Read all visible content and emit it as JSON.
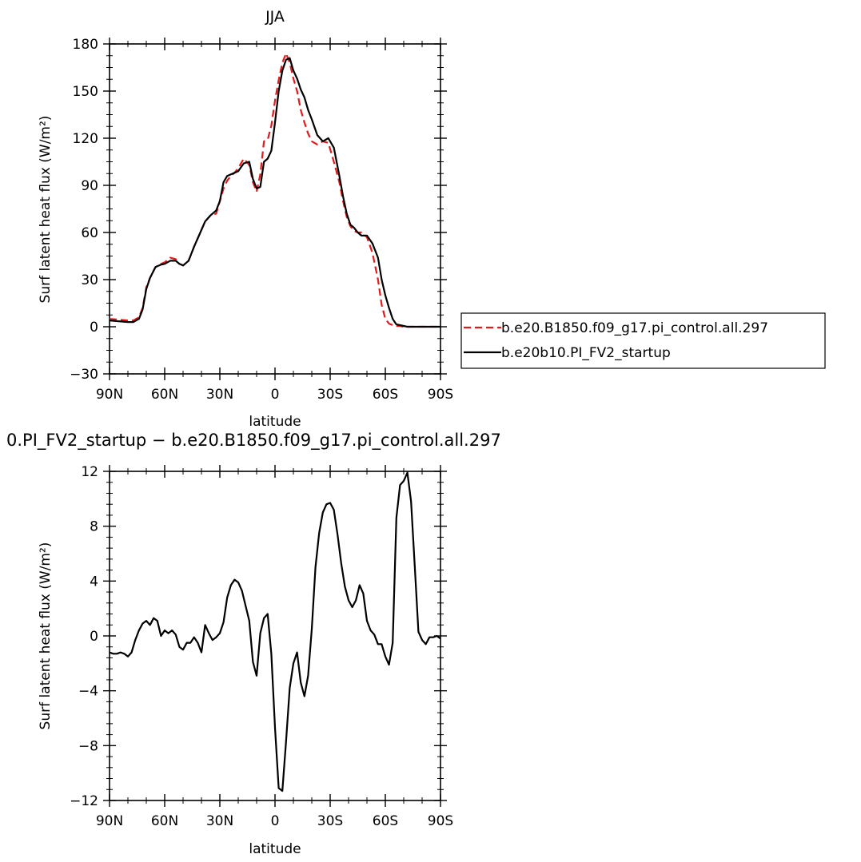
{
  "chart_data": [
    {
      "type": "line",
      "title": "JJA",
      "xlabel": "latitude",
      "ylabel": "Surf latent heat flux (W/m²)",
      "ylim": [
        -30,
        180
      ],
      "yticks": [
        "−30",
        "0",
        "30",
        "60",
        "90",
        "120",
        "150",
        "180"
      ],
      "ytick_values": [
        -30,
        0,
        30,
        60,
        90,
        120,
        150,
        180
      ],
      "xlim": [
        90,
        -90
      ],
      "xticks": [
        "90N",
        "60N",
        "30N",
        "0",
        "30S",
        "60S",
        "90S"
      ],
      "xtick_values": [
        90,
        60,
        30,
        0,
        -30,
        -60,
        -90
      ],
      "legend_position": "right",
      "series": [
        {
          "name": "b.e20.B1850.f09_g17.pi_control.all.297",
          "color": "#e31a1c",
          "style": "dashed",
          "x": [
            90,
            85,
            80,
            77,
            74,
            72,
            70,
            68,
            65,
            62,
            60,
            57,
            54,
            52,
            50,
            47,
            44,
            41,
            38,
            35,
            32,
            30,
            28,
            26,
            24,
            22,
            20,
            17,
            14,
            12,
            10,
            8,
            6,
            4,
            2,
            0,
            -2,
            -4,
            -6,
            -8,
            -10,
            -12,
            -14,
            -16,
            -18,
            -20,
            -23,
            -26,
            -29,
            -32,
            -35,
            -37,
            -39,
            -41,
            -43,
            -45,
            -47,
            -50,
            -53,
            -56,
            -58,
            -60,
            -62,
            -64,
            -66,
            -68,
            -70,
            -72,
            -75,
            -78,
            -80,
            -83,
            -86,
            -90
          ],
          "y": [
            5,
            4.5,
            4,
            4,
            6,
            12,
            25,
            31,
            38,
            40,
            41,
            44,
            43,
            40,
            39,
            42,
            51,
            59,
            67,
            71,
            72,
            80,
            88,
            93,
            96,
            98,
            101,
            107,
            103,
            92,
            86,
            97,
            118,
            119,
            128,
            144,
            157,
            168,
            174,
            168,
            158,
            150,
            138,
            130,
            123,
            118,
            116,
            118,
            117,
            105,
            92,
            80,
            70,
            64,
            61,
            60,
            60,
            57,
            47,
            30,
            14,
            5,
            2,
            1,
            0.5,
            0.5,
            0,
            0,
            0,
            0,
            0,
            0,
            0,
            0
          ]
        },
        {
          "name": "b.e20b10.PI_FV2_startup",
          "color": "#000000",
          "style": "solid",
          "x": [
            90,
            85,
            80,
            77,
            74,
            72,
            70,
            68,
            65,
            62,
            60,
            57,
            54,
            52,
            50,
            47,
            44,
            41,
            38,
            35,
            32,
            30,
            28,
            26,
            24,
            22,
            20,
            17,
            14,
            12,
            10,
            8,
            6,
            4,
            2,
            0,
            -2,
            -4,
            -6,
            -8,
            -10,
            -12,
            -14,
            -16,
            -18,
            -20,
            -23,
            -26,
            -29,
            -32,
            -35,
            -37,
            -39,
            -41,
            -43,
            -45,
            -47,
            -50,
            -53,
            -56,
            -58,
            -60,
            -62,
            -64,
            -66,
            -68,
            -70,
            -72,
            -75,
            -78,
            -80,
            -83,
            -86,
            -90
          ],
          "y": [
            4,
            3.5,
            3,
            3,
            5,
            11,
            24,
            31,
            38,
            39.5,
            40,
            42,
            42,
            40,
            39,
            42,
            51,
            59,
            67,
            71,
            74,
            80,
            92,
            96,
            97,
            98,
            99,
            104,
            105,
            94,
            88,
            89,
            105,
            107,
            112,
            130,
            150,
            163,
            170,
            171,
            163,
            158,
            151,
            146,
            138,
            132,
            122,
            118,
            120,
            114,
            96,
            83,
            72,
            65,
            63,
            60,
            58,
            58,
            53,
            44,
            30,
            20,
            12,
            5,
            1.5,
            1,
            0.5,
            0,
            0,
            0,
            0,
            0,
            0,
            0
          ]
        }
      ]
    },
    {
      "type": "line",
      "title": "0.PI_FV2_startup − b.e20.B1850.f09_g17.pi_control.all.297",
      "xlabel": "latitude",
      "ylabel": "Surf latent heat flux (W/m²)",
      "ylim": [
        -12,
        12
      ],
      "yticks": [
        "−12",
        "−8",
        "−4",
        "0",
        "4",
        "8",
        "12"
      ],
      "ytick_values": [
        -12,
        -8,
        -4,
        0,
        4,
        8,
        12
      ],
      "xlim": [
        90,
        -90
      ],
      "xticks": [
        "90N",
        "60N",
        "30N",
        "0",
        "30S",
        "60S",
        "90S"
      ],
      "xtick_values": [
        90,
        60,
        30,
        0,
        -30,
        -60,
        -90
      ],
      "series": [
        {
          "color": "#000000",
          "style": "solid",
          "x": [
            90,
            88,
            86,
            84,
            82,
            80,
            78,
            76,
            74,
            72,
            70,
            68,
            66,
            64,
            62,
            60,
            58,
            56,
            54,
            52,
            50,
            48,
            46,
            44,
            42,
            40,
            38,
            36,
            34,
            32,
            30,
            28,
            26,
            24,
            22,
            20,
            18,
            16,
            14,
            12,
            10,
            8,
            6,
            4,
            2,
            0,
            -2,
            -4,
            -6,
            -8,
            -10,
            -12,
            -14,
            -16,
            -18,
            -20,
            -22,
            -24,
            -26,
            -28,
            -30,
            -32,
            -34,
            -36,
            -38,
            -40,
            -42,
            -44,
            -46,
            -48,
            -50,
            -52,
            -54,
            -56,
            -58,
            -60,
            -62,
            -64,
            -66,
            -68,
            -70,
            -72,
            -74,
            -76,
            -78,
            -80,
            -82,
            -84,
            -86,
            -88,
            -90
          ],
          "y": [
            -1.2,
            -1.3,
            -1.3,
            -1.2,
            -1.3,
            -1.5,
            -1.2,
            -0.3,
            0.4,
            0.9,
            1.1,
            0.8,
            1.3,
            1.1,
            0.0,
            0.4,
            0.2,
            0.4,
            0.1,
            -0.8,
            -1.0,
            -0.5,
            -0.5,
            -0.1,
            -0.5,
            -1.2,
            0.8,
            0.2,
            -0.3,
            -0.1,
            0.2,
            1.0,
            2.8,
            3.7,
            4.1,
            3.9,
            3.3,
            2.2,
            1.1,
            -1.9,
            -2.9,
            0.2,
            1.3,
            1.6,
            -1.3,
            -6.7,
            -11.1,
            -11.3,
            -7.7,
            -3.8,
            -2.0,
            -1.2,
            -3.4,
            -4.4,
            -2.9,
            0.5,
            5.0,
            7.5,
            9.0,
            9.6,
            9.7,
            9.2,
            7.4,
            5.3,
            3.6,
            2.6,
            2.1,
            2.6,
            3.7,
            3.1,
            1.1,
            0.4,
            0.1,
            -0.6,
            -0.6,
            -1.5,
            -2.1,
            -0.5,
            8.6,
            11.0,
            11.3,
            11.9,
            9.8,
            5.1,
            0.3,
            -0.3,
            -0.6,
            -0.1,
            -0.1,
            0.0,
            -0.2
          ]
        }
      ]
    }
  ]
}
